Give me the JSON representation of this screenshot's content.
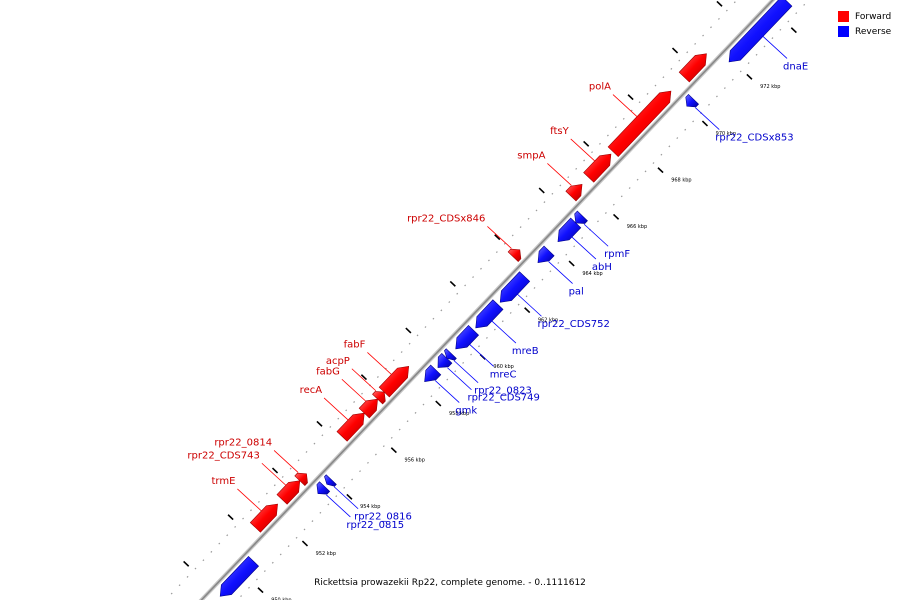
{
  "caption": "Rickettsia prowazekii Rp22, complete genome. - 0..1111612",
  "colors": {
    "forward": "#ff0000",
    "reverse": "#0000ff",
    "backbone": "#888888"
  },
  "legend": [
    {
      "label": "Forward",
      "color": "#ff0000"
    },
    {
      "label": "Reverse",
      "color": "#0000ff"
    }
  ],
  "scale": {
    "unit": "kbp",
    "start": 949,
    "end": 974
  },
  "ticks": [
    "950 kbp",
    "952 kbp",
    "954 kbp",
    "956 kbp",
    "958 kbp",
    "960 kbp",
    "962 kbp",
    "964 kbp",
    "966 kbp",
    "968 kbp",
    "970 kbp",
    "972 kbp"
  ],
  "genes": [
    {
      "name": "trmE",
      "strand": "forward",
      "start": 951.3,
      "end": 952.3,
      "labeled": true
    },
    {
      "name": "rpr22_CDS743",
      "strand": "forward",
      "start": 952.5,
      "end": 953.3,
      "labeled": true
    },
    {
      "name": "rpr22_0814",
      "strand": "forward",
      "start": 953.3,
      "end": 953.6,
      "labeled": true
    },
    {
      "name": "rpr22_0815",
      "strand": "reverse",
      "start": 953.4,
      "end": 953.7,
      "labeled": true
    },
    {
      "name": "rpr22_0816",
      "strand": "reverse",
      "start": 953.8,
      "end": 954.0,
      "labeled": true
    },
    {
      "name": "recA",
      "strand": "forward",
      "start": 955.2,
      "end": 956.2,
      "labeled": true
    },
    {
      "name": "fabG",
      "strand": "forward",
      "start": 956.2,
      "end": 956.8,
      "labeled": true
    },
    {
      "name": "acpP",
      "strand": "forward",
      "start": 956.8,
      "end": 957.1,
      "labeled": true
    },
    {
      "name": "fabF",
      "strand": "forward",
      "start": 957.1,
      "end": 958.2,
      "labeled": true
    },
    {
      "name": "gmk",
      "strand": "reverse",
      "start": 958.2,
      "end": 958.7,
      "labeled": true
    },
    {
      "name": "rpr22_CDS749",
      "strand": "reverse",
      "start": 958.8,
      "end": 959.2,
      "labeled": true
    },
    {
      "name": "rpr22_0823",
      "strand": "reverse",
      "start": 959.2,
      "end": 959.4,
      "labeled": true
    },
    {
      "name": "mreC",
      "strand": "reverse",
      "start": 959.6,
      "end": 960.4,
      "labeled": true
    },
    {
      "name": "mreB",
      "strand": "reverse",
      "start": 960.5,
      "end": 961.5,
      "labeled": true
    },
    {
      "name": "rpr22_CDS752",
      "strand": "reverse",
      "start": 961.6,
      "end": 962.7,
      "labeled": true
    },
    {
      "name": "rpr22_CDSx846",
      "strand": "forward",
      "start": 962.9,
      "end": 963.2,
      "labeled": true
    },
    {
      "name": "pal",
      "strand": "reverse",
      "start": 963.3,
      "end": 963.8,
      "labeled": true
    },
    {
      "name": "abH",
      "strand": "reverse",
      "start": 964.2,
      "end": 965.0,
      "labeled": true
    },
    {
      "name": "rpmF",
      "strand": "reverse",
      "start": 965.0,
      "end": 965.3,
      "labeled": true
    },
    {
      "name": "smpA",
      "strand": "forward",
      "start": 965.5,
      "end": 966.0,
      "labeled": true
    },
    {
      "name": "ftsY",
      "strand": "forward",
      "start": 966.3,
      "end": 967.3,
      "labeled": true
    },
    {
      "name": "polA",
      "strand": "forward",
      "start": 967.4,
      "end": 970.0,
      "labeled": true
    },
    {
      "name": "rpr22_CDSx853",
      "strand": "reverse",
      "start": 970.0,
      "end": 970.3,
      "labeled": true
    },
    {
      "name": "rpr22_fwd_971",
      "strand": "forward",
      "start": 970.6,
      "end": 971.6,
      "labeled": false
    },
    {
      "name": "dnaE",
      "strand": "reverse",
      "start": 971.9,
      "end": 974.5,
      "labeled": true
    },
    {
      "name": "rpr22_rev_950",
      "strand": "reverse",
      "start": 949.0,
      "end": 950.5,
      "labeled": false
    }
  ]
}
